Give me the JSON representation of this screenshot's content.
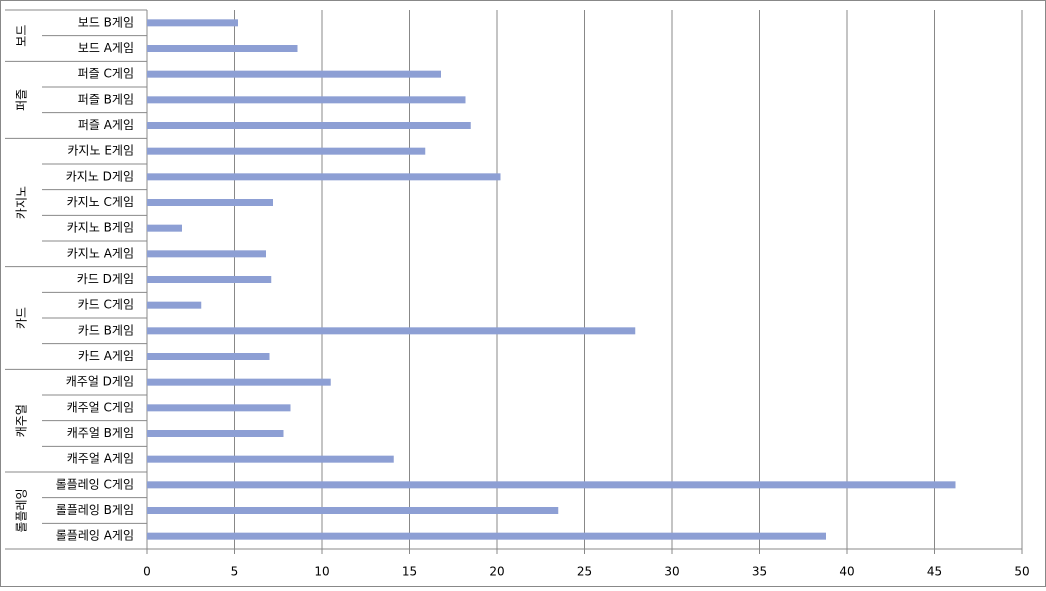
{
  "chart_data": {
    "type": "bar",
    "orientation": "horizontal",
    "color": "#8d9fd4",
    "groups": [
      {
        "name": "보드",
        "categories": [
          "보드 B게임",
          "보드 A게임"
        ],
        "values": [
          5.2,
          8.6
        ]
      },
      {
        "name": "퍼즐",
        "categories": [
          "퍼즐 C게임",
          "퍼즐 B게임",
          "퍼즐 A게임"
        ],
        "values": [
          16.8,
          18.2,
          18.5
        ]
      },
      {
        "name": "카지노",
        "categories": [
          "카지노 E게임",
          "카지노 D게임",
          "카지노 C게임",
          "카지노 B게임",
          "카지노 A게임"
        ],
        "values": [
          15.9,
          20.2,
          7.2,
          2.0,
          6.8
        ]
      },
      {
        "name": "카드",
        "categories": [
          "카드 D게임",
          "카드 C게임",
          "카드 B게임",
          "카드 A게임"
        ],
        "values": [
          7.1,
          3.1,
          27.9,
          7.0
        ]
      },
      {
        "name": "캐주얼",
        "categories": [
          "캐주얼 D게임",
          "캐주얼 C게임",
          "캐주얼 B게임",
          "캐주얼 A게임"
        ],
        "values": [
          10.5,
          8.2,
          7.8,
          14.1
        ]
      },
      {
        "name": "롤플레잉",
        "categories": [
          "롤플레잉 C게임",
          "롤플레잉 B게임",
          "롤플레잉 A게임"
        ],
        "values": [
          46.2,
          23.5,
          38.8
        ]
      }
    ],
    "xlim": [
      0,
      50
    ],
    "xticks": [
      0,
      5,
      10,
      15,
      20,
      25,
      30,
      35,
      40,
      45,
      50
    ],
    "grid": true
  }
}
